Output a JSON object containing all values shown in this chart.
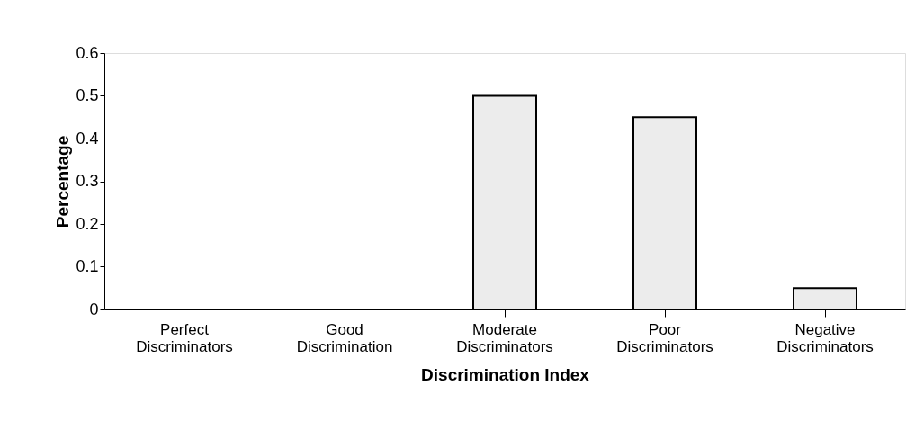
{
  "chart_data": {
    "type": "bar",
    "categories": [
      "Perfect Discriminators",
      "Good Discrimination",
      "Moderate Discriminators",
      "Poor Discriminators",
      "Negative Discriminators"
    ],
    "values": [
      0,
      0,
      0.5,
      0.45,
      0.05
    ],
    "color": "#ececec",
    "xlabel": "Discrimination Index",
    "ylabel": "Percentage",
    "ylim": [
      0,
      0.6
    ],
    "yticks": [
      0,
      0.1,
      0.2,
      0.3,
      0.4,
      0.5,
      0.6
    ],
    "grid": false
  }
}
